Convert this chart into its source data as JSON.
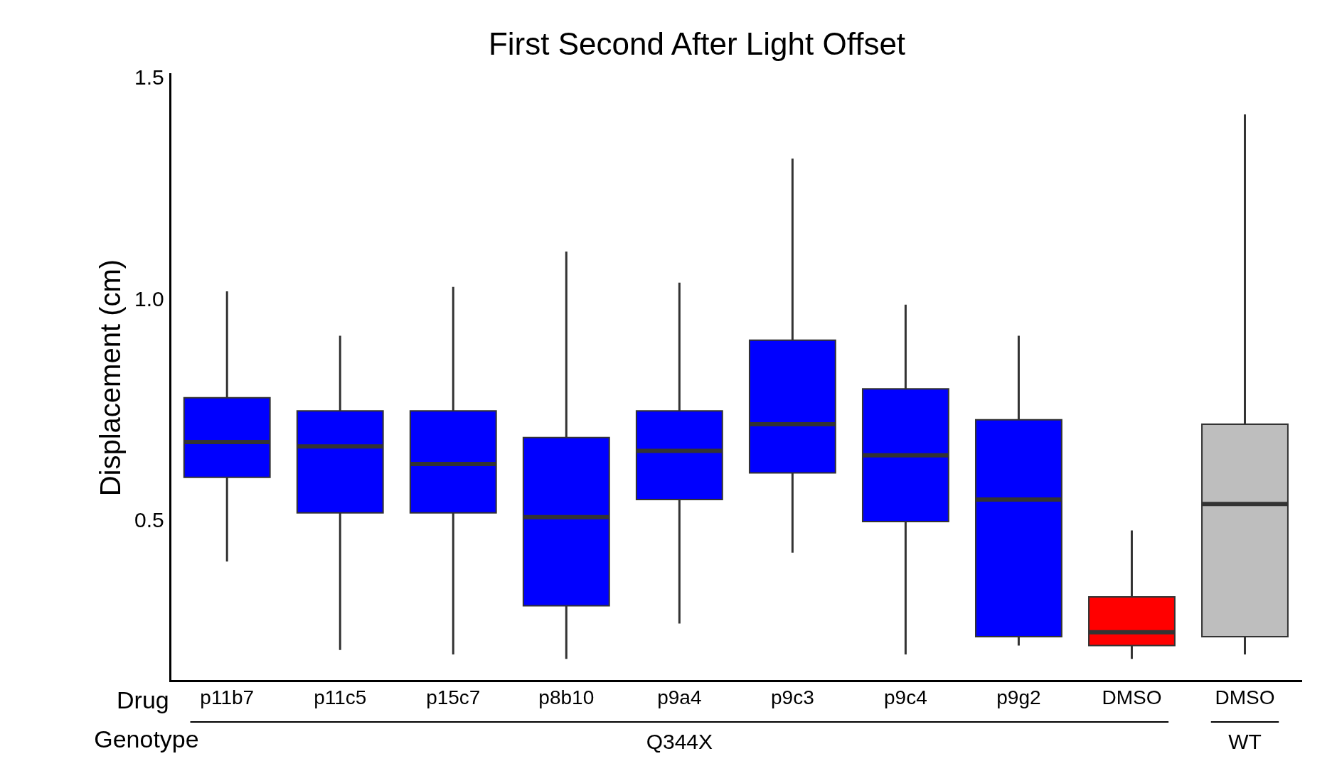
{
  "chart_data": {
    "type": "box",
    "title": "First Second After Light Offset",
    "ylabel": "Displacement (cm)",
    "categories": [
      "p11b7",
      "p11c5",
      "p15c7",
      "p8b10",
      "p9a4",
      "p9c3",
      "p9c4",
      "p9g2",
      "DMSO",
      "DMSO"
    ],
    "colors": [
      "#0000ff",
      "#0000ff",
      "#0000ff",
      "#0000ff",
      "#0000ff",
      "#0000ff",
      "#0000ff",
      "#0000ff",
      "#ff0000",
      "#bebebe"
    ],
    "boxes": [
      {
        "low": 0.41,
        "q1": 0.6,
        "median": 0.68,
        "q3": 0.78,
        "high": 1.02
      },
      {
        "low": 0.21,
        "q1": 0.52,
        "median": 0.67,
        "q3": 0.75,
        "high": 0.92
      },
      {
        "low": 0.2,
        "q1": 0.52,
        "median": 0.63,
        "q3": 0.75,
        "high": 1.03
      },
      {
        "low": 0.19,
        "q1": 0.31,
        "median": 0.51,
        "q3": 0.69,
        "high": 1.11
      },
      {
        "low": 0.27,
        "q1": 0.55,
        "median": 0.66,
        "q3": 0.75,
        "high": 1.04
      },
      {
        "low": 0.43,
        "q1": 0.61,
        "median": 0.72,
        "q3": 0.91,
        "high": 1.32
      },
      {
        "low": 0.2,
        "q1": 0.5,
        "median": 0.65,
        "q3": 0.8,
        "high": 0.99
      },
      {
        "low": 0.22,
        "q1": 0.24,
        "median": 0.55,
        "q3": 0.73,
        "high": 0.92
      },
      {
        "low": 0.19,
        "q1": 0.22,
        "median": 0.25,
        "q3": 0.33,
        "high": 0.48
      },
      {
        "low": 0.2,
        "q1": 0.24,
        "median": 0.54,
        "q3": 0.72,
        "high": 1.42
      }
    ],
    "ylim": [
      0.14,
      1.51
    ],
    "yticks": [
      {
        "value": 0.5,
        "label": "0.5"
      },
      {
        "value": 1.0,
        "label": "1.0"
      },
      {
        "value": 1.5,
        "label": "1.5"
      }
    ],
    "grid": false,
    "legend": false,
    "annotations": [
      "Drug",
      "Genotype",
      "Q344X",
      "WT"
    ]
  }
}
